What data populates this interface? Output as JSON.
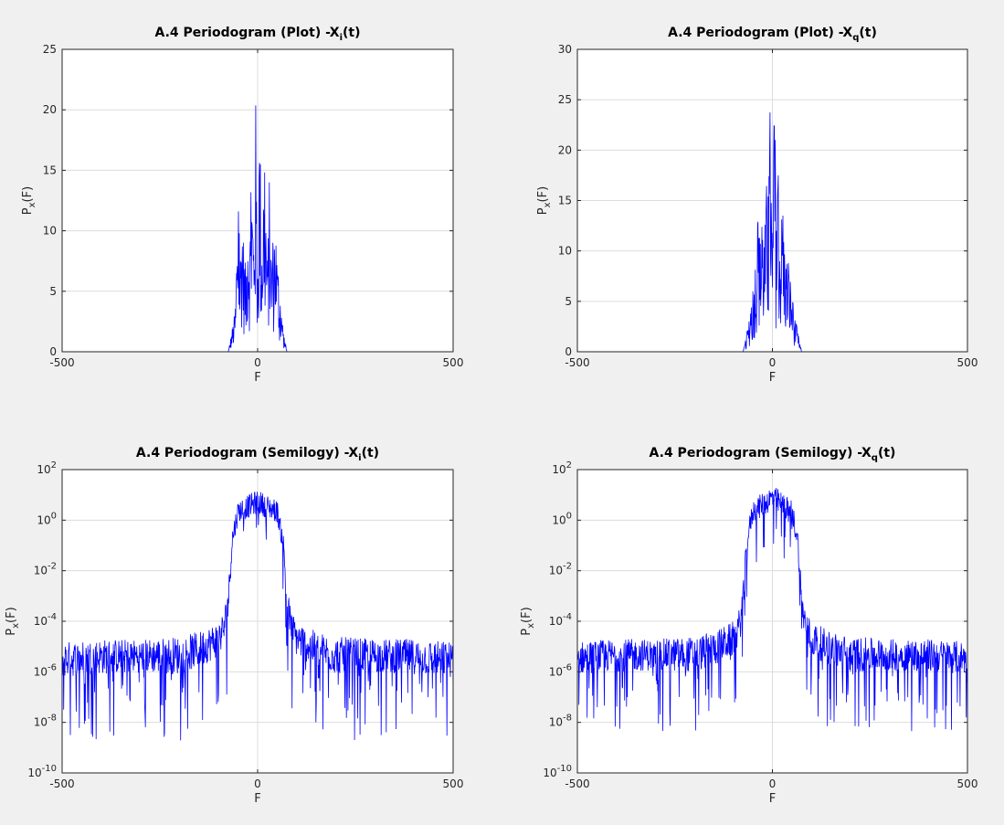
{
  "chart_data": [
    {
      "type": "line",
      "scale": "linear",
      "title": "A.4 Periodogram (Plot) -X",
      "title_sub": "i",
      "title_end": "(t)",
      "xlabel": "F",
      "ylabel": "P",
      "ylabel_sub": "x",
      "ylabel_end": "(F)",
      "xlim": [
        -500,
        500
      ],
      "ylim": [
        0,
        25
      ],
      "xticks": [
        -500,
        0,
        500
      ],
      "yticks": [
        0,
        5,
        10,
        15,
        20,
        25
      ],
      "grid": true,
      "line_color": "#0000ff",
      "series": [
        {
          "x": [
            -500,
            -75,
            -70,
            -65,
            -60,
            -55,
            -50,
            -45,
            -40,
            -35,
            -30,
            -25,
            -20,
            -15,
            -10,
            -5,
            0,
            5,
            10,
            15,
            20,
            25,
            30,
            35,
            40,
            45,
            50,
            55,
            60,
            65,
            70,
            75,
            500
          ],
          "y": [
            0,
            0,
            1,
            2,
            3,
            5,
            12.5,
            8,
            13,
            9,
            7,
            14,
            10,
            15.3,
            11,
            20.9,
            6,
            20.9,
            10,
            15.3,
            14.5,
            8,
            14,
            9,
            9,
            12.3,
            8,
            5,
            3,
            2,
            1,
            0,
            0
          ]
        }
      ]
    },
    {
      "type": "line",
      "scale": "linear",
      "title": "A.4 Periodogram (Plot) -X",
      "title_sub": "q",
      "title_end": "(t)",
      "xlabel": "F",
      "ylabel": "P",
      "ylabel_sub": "x",
      "ylabel_end": "(F)",
      "xlim": [
        -500,
        500
      ],
      "ylim": [
        0,
        30
      ],
      "xticks": [
        -500,
        0,
        500
      ],
      "yticks": [
        0,
        5,
        10,
        15,
        20,
        25,
        30
      ],
      "grid": true,
      "line_color": "#0000ff",
      "series": [
        {
          "x": [
            -500,
            -75,
            -70,
            -65,
            -60,
            -55,
            -50,
            -45,
            -40,
            -35,
            -30,
            -25,
            -20,
            -15,
            -10,
            -5,
            0,
            5,
            10,
            15,
            20,
            25,
            30,
            35,
            40,
            45,
            50,
            55,
            60,
            65,
            70,
            75,
            500
          ],
          "y": [
            0,
            0,
            1,
            2,
            3,
            4,
            6,
            9,
            12,
            13.5,
            10,
            14,
            12,
            17,
            15,
            27,
            8,
            27,
            12,
            17.5,
            13,
            14.5,
            12,
            10,
            9,
            8,
            6,
            4,
            3,
            2,
            1,
            0,
            0
          ]
        }
      ]
    },
    {
      "type": "line",
      "scale": "log",
      "title": "A.4 Periodogram (Semilogy) -X",
      "title_sub": "i",
      "title_end": "(t)",
      "xlabel": "F",
      "ylabel": "P",
      "ylabel_sub": "x",
      "ylabel_end": "(F)",
      "xlim": [
        -500,
        500
      ],
      "ylim_exp": [
        -10,
        2
      ],
      "xticks": [
        -500,
        0,
        500
      ],
      "ytick_exponents": [
        -10,
        -8,
        -6,
        -4,
        -2,
        0,
        2
      ],
      "grid": true,
      "line_color": "#0000ff",
      "envelope": {
        "x": [
          -500,
          -400,
          -300,
          -200,
          -150,
          -100,
          -85,
          -75,
          -65,
          -50,
          0,
          50,
          65,
          75,
          85,
          100,
          150,
          200,
          300,
          400,
          500
        ],
        "upper_exp": [
          -4.8,
          -4.7,
          -4.7,
          -4.6,
          -4.4,
          -4.0,
          -3.5,
          -2.5,
          -0.3,
          0.8,
          1.2,
          0.8,
          -0.3,
          -2.5,
          -3.5,
          -4.0,
          -4.4,
          -4.6,
          -4.7,
          -4.7,
          -4.8
        ],
        "lower_exp": [
          -8.9,
          -8.7,
          -8.5,
          -8.9,
          -8.5,
          -8.0,
          -7.6,
          -6.5,
          -3.0,
          -1.8,
          -1.5,
          -1.8,
          -3.0,
          -6.5,
          -7.6,
          -8.0,
          -8.5,
          -8.9,
          -8.5,
          -8.7,
          -8.9
        ]
      }
    },
    {
      "type": "line",
      "scale": "log",
      "title": "A.4 Periodogram (Semilogy) -X",
      "title_sub": "q",
      "title_end": "(t)",
      "xlabel": "F",
      "ylabel": "P",
      "ylabel_sub": "x",
      "ylabel_end": "(F)",
      "xlim": [
        -500,
        500
      ],
      "ylim_exp": [
        -10,
        2
      ],
      "xticks": [
        -500,
        0,
        500
      ],
      "ytick_exponents": [
        -10,
        -8,
        -6,
        -4,
        -2,
        0,
        2
      ],
      "grid": true,
      "line_color": "#0000ff",
      "envelope": {
        "x": [
          -500,
          -400,
          -300,
          -200,
          -150,
          -100,
          -85,
          -75,
          -65,
          -50,
          0,
          50,
          65,
          75,
          85,
          100,
          150,
          200,
          300,
          400,
          500
        ],
        "upper_exp": [
          -4.8,
          -4.7,
          -4.7,
          -4.6,
          -4.4,
          -4.0,
          -3.5,
          -2.5,
          -0.3,
          0.8,
          1.4,
          0.8,
          -0.3,
          -2.5,
          -3.5,
          -4.0,
          -4.4,
          -4.6,
          -4.7,
          -4.7,
          -4.8
        ],
        "lower_exp": [
          -8.5,
          -8.4,
          -8.3,
          -8.7,
          -8.3,
          -8.0,
          -7.6,
          -6.5,
          -3.0,
          -1.8,
          -1.5,
          -1.8,
          -3.0,
          -6.5,
          -7.6,
          -8.0,
          -8.3,
          -8.7,
          -8.3,
          -8.4,
          -8.5
        ]
      }
    }
  ]
}
